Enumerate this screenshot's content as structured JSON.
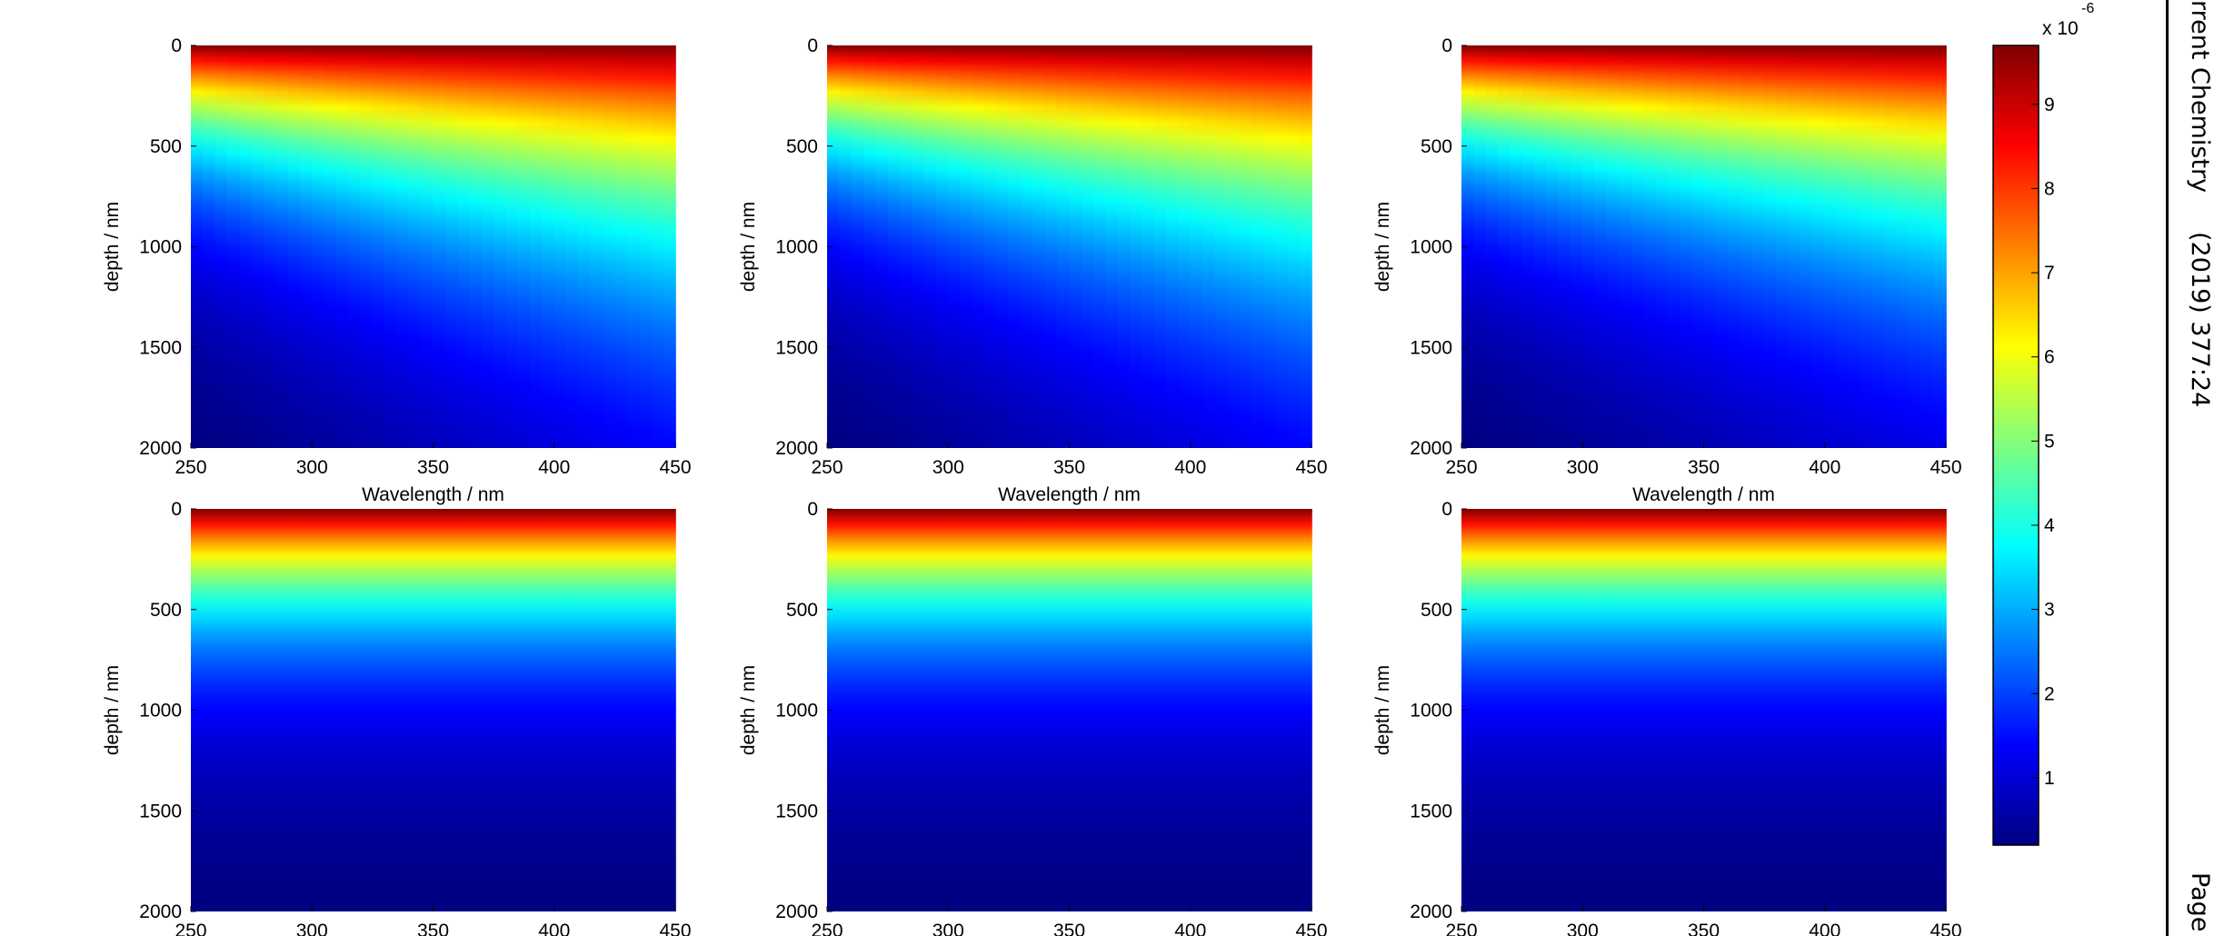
{
  "chart_data": {
    "type": "heatmap",
    "layout": "2x3 grid",
    "colormap": "jet",
    "xlabel": "Wavelength / nm",
    "ylabel": "depth / nm",
    "xlim": [
      250,
      450
    ],
    "ylim": [
      0,
      2000
    ],
    "y_reversed": true,
    "xticks": [
      "250",
      "300",
      "350",
      "400",
      "450"
    ],
    "yticks": [
      "0",
      "500",
      "1000",
      "1500",
      "2000"
    ],
    "colorbar": {
      "range": [
        0.2,
        9.7
      ],
      "ticks": [
        "1",
        "2",
        "3",
        "4",
        "5",
        "6",
        "7",
        "8",
        "9"
      ],
      "exponent_label": "x 10",
      "exponent": "-6"
    },
    "panels": [
      {
        "row": 1,
        "col": 1,
        "surface_value": 9.7,
        "depth_value_250nm": 0.2,
        "depth_value_450nm": 1.4
      },
      {
        "row": 1,
        "col": 2,
        "surface_value": 9.7,
        "depth_value_250nm": 0.2,
        "depth_value_450nm": 1.4
      },
      {
        "row": 1,
        "col": 3,
        "surface_value": 9.7,
        "depth_value_250nm": 0.2,
        "depth_value_450nm": 1.2
      },
      {
        "row": 2,
        "col": 1,
        "surface_value": 9.7,
        "depth_value_250nm": 0.2,
        "depth_value_450nm": 0.2
      },
      {
        "row": 2,
        "col": 2,
        "surface_value": 9.7,
        "depth_value_250nm": 0.2,
        "depth_value_450nm": 0.2
      },
      {
        "row": 2,
        "col": 3,
        "surface_value": 9.7,
        "depth_value_250nm": 0.2,
        "depth_value_450nm": 0.2
      }
    ]
  },
  "page": {
    "journal": "rrent Chemistry",
    "citation": "(2019) 377:24",
    "page_label": "Page"
  }
}
